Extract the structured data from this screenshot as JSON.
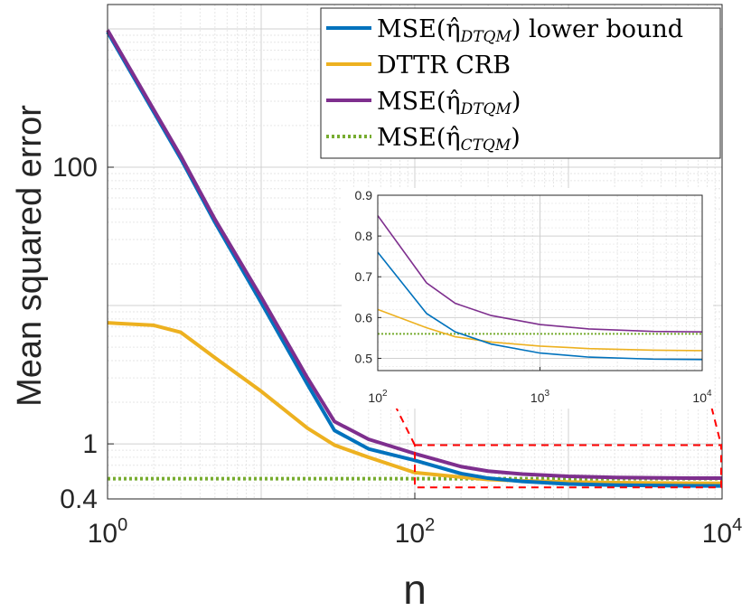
{
  "chart_data": {
    "type": "line",
    "xscale": "log",
    "yscale": "log",
    "xlabel": "n",
    "ylabel": "Mean squared error",
    "xlim": [
      1,
      10000
    ],
    "ylim": [
      0.4,
      1500
    ],
    "x_ticks": [
      {
        "value": 1,
        "base": "10",
        "exp": "0"
      },
      {
        "value": 100,
        "base": "10",
        "exp": "2"
      },
      {
        "value": 10000,
        "base": "10",
        "exp": "4"
      }
    ],
    "y_ticks": [
      {
        "value": 0.4,
        "label": "0.4"
      },
      {
        "value": 1,
        "label": "1"
      },
      {
        "value": 100,
        "label": "100"
      }
    ],
    "grid": true,
    "x": [
      1,
      2,
      3,
      5,
      10,
      20,
      30,
      50,
      100,
      200,
      300,
      500,
      1000,
      2000,
      5000,
      10000
    ],
    "series": [
      {
        "name": "MSE(η̂_DTQM) lower bound",
        "legend_main": "MSE(η̂",
        "legend_sub": "DTQM",
        "legend_tail": ") lower bound",
        "color": "#0072BD",
        "dash": "solid",
        "values": [
          950,
          250,
          115,
          40,
          10.5,
          2.7,
          1.25,
          0.92,
          0.76,
          0.61,
          0.565,
          0.535,
          0.513,
          0.503,
          0.498,
          0.497
        ]
      },
      {
        "name": "DTTR CRB",
        "legend_main": "DTTR CRB",
        "legend_sub": "",
        "legend_tail": "",
        "color": "#EDB120",
        "dash": "solid",
        "values": [
          7.5,
          7.2,
          6.4,
          4.2,
          2.4,
          1.3,
          0.98,
          0.8,
          0.62,
          0.575,
          0.553,
          0.54,
          0.53,
          0.524,
          0.52,
          0.519
        ]
      },
      {
        "name": "MSE(η̂_DTQM)",
        "legend_main": "MSE(η̂",
        "legend_sub": "DTQM",
        "legend_tail": ")",
        "color": "#7E2F8E",
        "dash": "solid",
        "values": [
          980,
          260,
          120,
          42,
          11.5,
          3.0,
          1.45,
          1.08,
          0.85,
          0.685,
          0.635,
          0.605,
          0.583,
          0.572,
          0.566,
          0.565
        ]
      },
      {
        "name": "MSE(η̂_CTQM)",
        "legend_main": "MSE(η̂",
        "legend_sub": "CTQM",
        "legend_tail": ")",
        "color": "#77AC30",
        "dash": "dotted",
        "values": [
          0.56,
          0.56,
          0.56,
          0.56,
          0.56,
          0.56,
          0.56,
          0.56,
          0.56,
          0.56,
          0.56,
          0.56,
          0.56,
          0.56,
          0.56,
          0.56
        ]
      }
    ],
    "legend_position": "top-right",
    "inset": {
      "xscale": "log",
      "yscale": "linear",
      "xlim": [
        100,
        10000
      ],
      "ylim": [
        0.47,
        0.9
      ],
      "x_ticks": [
        {
          "value": 100,
          "base": "10",
          "exp": "2"
        },
        {
          "value": 1000,
          "base": "10",
          "exp": "3"
        },
        {
          "value": 10000,
          "base": "10",
          "exp": "4"
        }
      ],
      "y_ticks": [
        {
          "value": 0.5,
          "label": "0.5"
        },
        {
          "value": 0.6,
          "label": "0.6"
        },
        {
          "value": 0.7,
          "label": "0.7"
        },
        {
          "value": 0.8,
          "label": "0.8"
        },
        {
          "value": 0.9,
          "label": "0.9"
        }
      ],
      "zoom_region": {
        "x": [
          100,
          10000
        ],
        "y": [
          0.47,
          0.98
        ]
      }
    }
  }
}
